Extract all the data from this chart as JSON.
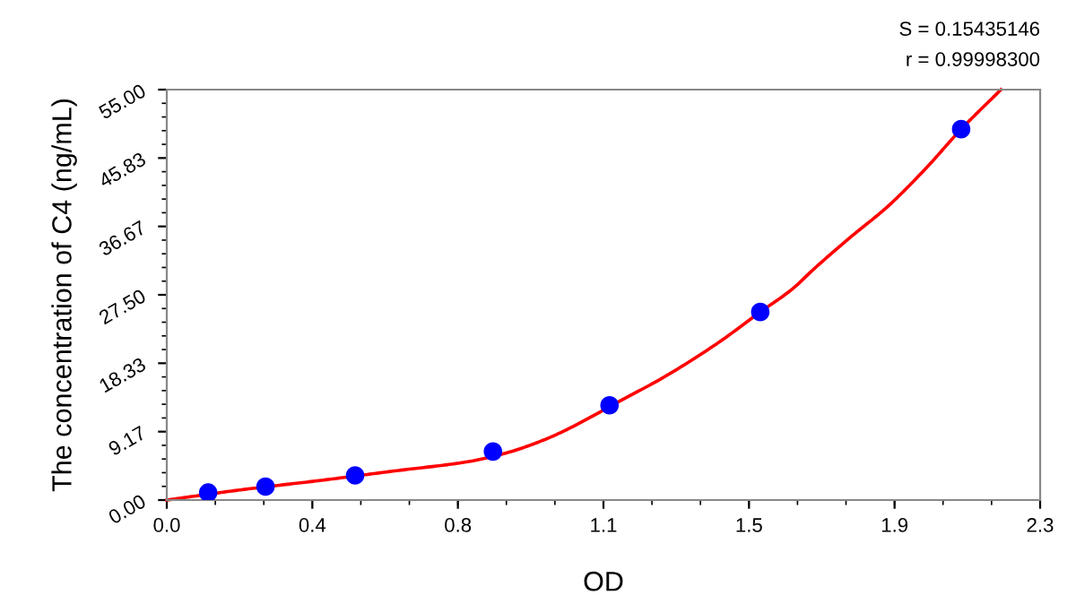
{
  "chart_data": {
    "type": "scatter",
    "xlabel": "OD",
    "ylabel": "The concentration of C4 (ng/mL)",
    "annotations": [
      "S = 0.15435146",
      "r = 0.99998300"
    ],
    "series": [
      {
        "type": "line",
        "color": "#ff0000",
        "marker": "none",
        "line_style": "solid",
        "x": [
          0,
          0.2,
          0.4,
          0.6,
          0.8,
          0.9,
          1.0,
          1.22,
          1.3,
          1.45,
          1.563,
          1.648,
          1.705,
          1.8,
          1.9,
          2.0,
          2.092,
          2.197
        ],
        "values": [
          0,
          1.4,
          2.6,
          3.9,
          5.2,
          6.4,
          8.2,
          14.0,
          16.2,
          21.0,
          25.2,
          28.3,
          31.0,
          35.2,
          39.4,
          44.5,
          49.7,
          55
        ]
      },
      {
        "color": "#0000ff",
        "marker": "circle",
        "x": [
          0.109,
          0.26,
          0.496,
          0.859,
          1.166,
          1.563,
          2.092
        ],
        "values": [
          1.0,
          1.8,
          3.3,
          6.5,
          12.7,
          25.2,
          49.7
        ]
      }
    ],
    "xlim": [
      0,
      2.3
    ],
    "xticks": [
      {
        "value": 0,
        "label": "0.0"
      },
      {
        "value": 0.3833,
        "label": "0.4"
      },
      {
        "value": 0.7667,
        "label": "0.8"
      },
      {
        "value": 1.15,
        "label": "1.1"
      },
      {
        "value": 1.5333,
        "label": "1.5"
      },
      {
        "value": 1.9167,
        "label": "1.9"
      },
      2.3
    ],
    "ylim": [
      0,
      55
    ],
    "yticks": [
      {
        "value": 0,
        "label": "0.00"
      },
      {
        "value": 9.1667,
        "label": "9.17"
      },
      {
        "value": 18.333,
        "label": "18.33"
      },
      {
        "value": 27.5,
        "label": "27.50"
      },
      {
        "value": 36.667,
        "label": "36.67"
      },
      {
        "value": 45.833,
        "label": "45.83"
      },
      {
        "value": 55,
        "label": "55.00"
      }
    ],
    "grid": false,
    "legend": false
  }
}
